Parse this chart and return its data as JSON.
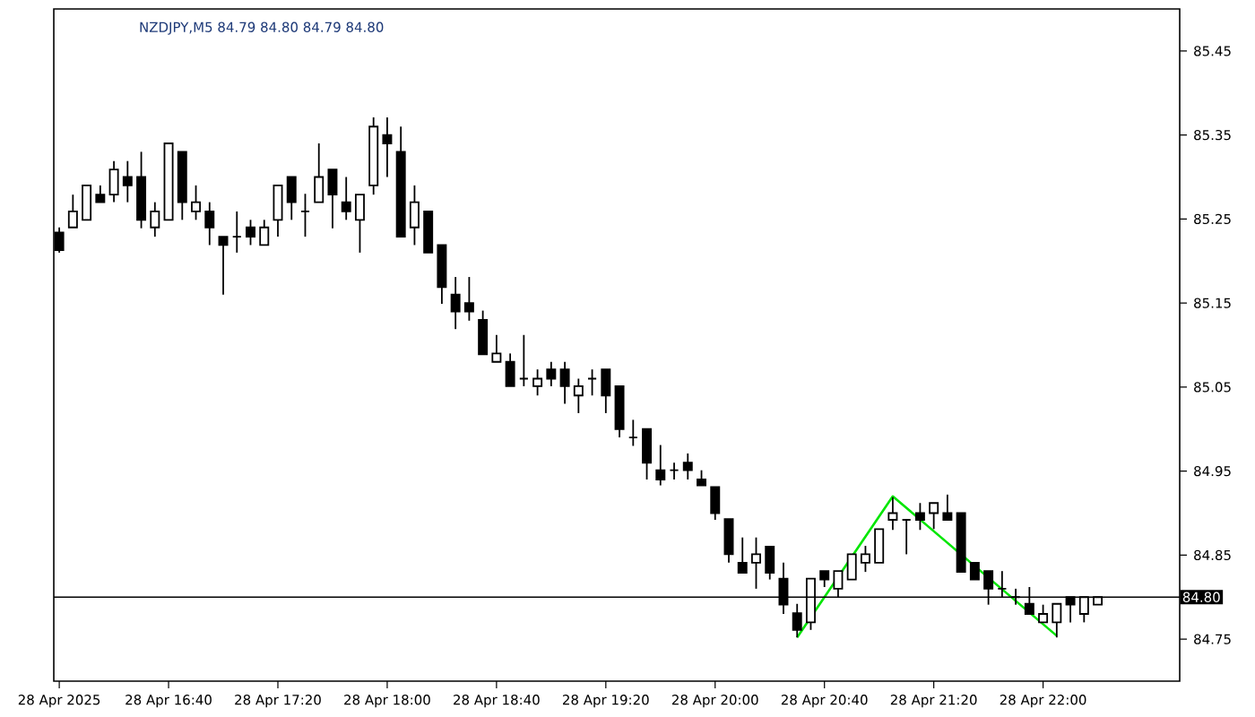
{
  "chart_data": {
    "type": "candlestick",
    "title": "NZDJPY,M5  84.79 84.80 84.79 84.80",
    "xlim": [
      "2025-04-28T15:58",
      "2025-04-28T22:50"
    ],
    "ylim": [
      84.7,
      85.5
    ],
    "xticks": [
      {
        "value": "2025-04-28T16:00",
        "label": "28 Apr 2025"
      },
      {
        "value": "2025-04-28T16:40",
        "label": "28 Apr 16:40"
      },
      {
        "value": "2025-04-28T17:20",
        "label": "28 Apr 17:20"
      },
      {
        "value": "2025-04-28T18:00",
        "label": "28 Apr 18:00"
      },
      {
        "value": "2025-04-28T18:40",
        "label": "28 Apr 18:40"
      },
      {
        "value": "2025-04-28T19:20",
        "label": "28 Apr 19:20"
      },
      {
        "value": "2025-04-28T20:00",
        "label": "28 Apr 20:00"
      },
      {
        "value": "2025-04-28T20:40",
        "label": "28 Apr 20:40"
      },
      {
        "value": "2025-04-28T21:20",
        "label": "28 Apr 21:20"
      },
      {
        "value": "2025-04-28T22:00",
        "label": "28 Apr 22:00"
      }
    ],
    "yticks": [
      84.75,
      84.85,
      84.95,
      85.05,
      85.15,
      85.25,
      85.35,
      85.45
    ],
    "ref_lines": [
      {
        "axis": "y",
        "value": 84.8,
        "label": "84.80",
        "color": "#000000"
      }
    ],
    "series": [
      {
        "color": "#000000",
        "x": [
          "2025-04-28T16:00",
          "2025-04-28T16:05",
          "2025-04-28T16:10",
          "2025-04-28T16:15",
          "2025-04-28T16:20",
          "2025-04-28T16:25",
          "2025-04-28T16:30",
          "2025-04-28T16:35",
          "2025-04-28T16:40",
          "2025-04-28T16:45",
          "2025-04-28T16:50",
          "2025-04-28T16:55",
          "2025-04-28T17:00",
          "2025-04-28T17:05",
          "2025-04-28T17:10",
          "2025-04-28T17:15",
          "2025-04-28T17:20",
          "2025-04-28T17:25",
          "2025-04-28T17:30",
          "2025-04-28T17:35",
          "2025-04-28T17:40",
          "2025-04-28T17:45",
          "2025-04-28T17:50",
          "2025-04-28T17:55",
          "2025-04-28T18:00",
          "2025-04-28T18:05",
          "2025-04-28T18:10",
          "2025-04-28T18:15",
          "2025-04-28T18:20",
          "2025-04-28T18:25",
          "2025-04-28T18:30",
          "2025-04-28T18:35",
          "2025-04-28T18:40",
          "2025-04-28T18:45",
          "2025-04-28T18:50",
          "2025-04-28T18:55",
          "2025-04-28T19:00",
          "2025-04-28T19:05",
          "2025-04-28T19:10",
          "2025-04-28T19:15",
          "2025-04-28T19:20",
          "2025-04-28T19:25",
          "2025-04-28T19:30",
          "2025-04-28T19:35",
          "2025-04-28T19:40",
          "2025-04-28T19:45",
          "2025-04-28T19:50",
          "2025-04-28T19:55",
          "2025-04-28T20:00",
          "2025-04-28T20:05",
          "2025-04-28T20:10",
          "2025-04-28T20:15",
          "2025-04-28T20:20",
          "2025-04-28T20:25",
          "2025-04-28T20:30",
          "2025-04-28T20:35",
          "2025-04-28T20:40",
          "2025-04-28T20:45",
          "2025-04-28T20:50",
          "2025-04-28T20:55",
          "2025-04-28T21:00",
          "2025-04-28T21:05",
          "2025-04-28T21:10",
          "2025-04-28T21:15",
          "2025-04-28T21:20",
          "2025-04-28T21:25",
          "2025-04-28T21:30",
          "2025-04-28T21:35",
          "2025-04-28T21:40",
          "2025-04-28T21:45",
          "2025-04-28T21:50",
          "2025-04-28T21:55",
          "2025-04-28T22:00",
          "2025-04-28T22:05",
          "2025-04-28T22:10",
          "2025-04-28T22:15",
          "2025-04-28T22:20"
        ],
        "ohlc": [
          [
            85.234,
            85.24,
            85.21,
            85.213
          ],
          [
            85.24,
            85.279,
            85.24,
            85.259
          ],
          [
            85.249,
            85.29,
            85.249,
            85.29
          ],
          [
            85.279,
            85.29,
            85.27,
            85.27
          ],
          [
            85.279,
            85.319,
            85.27,
            85.309
          ],
          [
            85.3,
            85.319,
            85.27,
            85.29
          ],
          [
            85.3,
            85.33,
            85.239,
            85.249
          ],
          [
            85.24,
            85.27,
            85.229,
            85.259
          ],
          [
            85.249,
            85.34,
            85.249,
            85.34
          ],
          [
            85.33,
            85.33,
            85.249,
            85.27
          ],
          [
            85.259,
            85.29,
            85.249,
            85.27
          ],
          [
            85.259,
            85.27,
            85.219,
            85.24
          ],
          [
            85.229,
            85.229,
            85.16,
            85.219
          ],
          [
            85.229,
            85.259,
            85.21,
            85.229
          ],
          [
            85.24,
            85.249,
            85.219,
            85.229
          ],
          [
            85.219,
            85.249,
            85.219,
            85.24
          ],
          [
            85.249,
            85.29,
            85.229,
            85.29
          ],
          [
            85.3,
            85.3,
            85.249,
            85.27
          ],
          [
            85.259,
            85.28,
            85.229,
            85.259
          ],
          [
            85.27,
            85.34,
            85.27,
            85.3
          ],
          [
            85.309,
            85.309,
            85.239,
            85.279
          ],
          [
            85.27,
            85.3,
            85.249,
            85.259
          ],
          [
            85.249,
            85.279,
            85.21,
            85.279
          ],
          [
            85.29,
            85.371,
            85.279,
            85.36
          ],
          [
            85.35,
            85.371,
            85.3,
            85.34
          ],
          [
            85.33,
            85.36,
            85.229,
            85.229
          ],
          [
            85.24,
            85.29,
            85.219,
            85.27
          ],
          [
            85.259,
            85.259,
            85.21,
            85.21
          ],
          [
            85.219,
            85.219,
            85.149,
            85.169
          ],
          [
            85.16,
            85.181,
            85.119,
            85.14
          ],
          [
            85.15,
            85.181,
            85.129,
            85.14
          ],
          [
            85.13,
            85.141,
            85.089,
            85.089
          ],
          [
            85.08,
            85.112,
            85.08,
            85.09
          ],
          [
            85.08,
            85.09,
            85.051,
            85.051
          ],
          [
            85.06,
            85.112,
            85.051,
            85.06
          ],
          [
            85.051,
            85.071,
            85.04,
            85.06
          ],
          [
            85.071,
            85.08,
            85.051,
            85.06
          ],
          [
            85.071,
            85.08,
            85.03,
            85.051
          ],
          [
            85.04,
            85.06,
            85.019,
            85.051
          ],
          [
            85.06,
            85.071,
            85.04,
            85.06
          ],
          [
            85.071,
            85.071,
            85.019,
            85.04
          ],
          [
            85.051,
            85.051,
            84.99,
            85.0
          ],
          [
            84.99,
            85.011,
            84.98,
            84.99
          ],
          [
            85.0,
            85.0,
            84.94,
            84.96
          ],
          [
            84.951,
            84.981,
            84.933,
            84.94
          ],
          [
            84.951,
            84.96,
            84.94,
            84.951
          ],
          [
            84.96,
            84.971,
            84.94,
            84.951
          ],
          [
            84.94,
            84.951,
            84.933,
            84.933
          ],
          [
            84.931,
            84.931,
            84.892,
            84.9
          ],
          [
            84.893,
            84.893,
            84.841,
            84.851
          ],
          [
            84.841,
            84.871,
            84.829,
            84.829
          ],
          [
            84.841,
            84.871,
            84.81,
            84.851
          ],
          [
            84.86,
            84.86,
            84.821,
            84.829
          ],
          [
            84.822,
            84.841,
            84.78,
            84.791
          ],
          [
            84.781,
            84.792,
            84.752,
            84.761
          ],
          [
            84.77,
            84.822,
            84.761,
            84.822
          ],
          [
            84.831,
            84.831,
            84.812,
            84.821
          ],
          [
            84.81,
            84.831,
            84.8,
            84.831
          ],
          [
            84.821,
            84.851,
            84.821,
            84.851
          ],
          [
            84.841,
            84.861,
            84.83,
            84.851
          ],
          [
            84.841,
            84.881,
            84.841,
            84.881
          ],
          [
            84.892,
            84.919,
            84.88,
            84.9
          ],
          [
            84.892,
            84.892,
            84.851,
            84.892
          ],
          [
            84.9,
            84.912,
            84.88,
            84.892
          ],
          [
            84.9,
            84.912,
            84.881,
            84.912
          ],
          [
            84.9,
            84.922,
            84.892,
            84.892
          ],
          [
            84.9,
            84.9,
            84.83,
            84.83
          ],
          [
            84.841,
            84.841,
            84.821,
            84.821
          ],
          [
            84.831,
            84.831,
            84.791,
            84.81
          ],
          [
            84.81,
            84.831,
            84.8,
            84.81
          ],
          [
            84.8,
            84.81,
            84.791,
            84.8
          ],
          [
            84.792,
            84.812,
            84.78,
            84.78
          ],
          [
            84.77,
            84.791,
            84.77,
            84.78
          ],
          [
            84.77,
            84.792,
            84.752,
            84.792
          ],
          [
            84.8,
            84.8,
            84.77,
            84.791
          ],
          [
            84.78,
            84.8,
            84.77,
            84.8
          ],
          [
            84.791,
            84.8,
            84.791,
            84.8
          ]
        ]
      },
      {
        "type": "line",
        "color": "#00e600",
        "x": [
          "2025-04-28T20:30",
          "2025-04-28T21:05",
          "2025-04-28T22:05"
        ],
        "values": [
          84.752,
          84.92,
          84.754
        ]
      }
    ]
  }
}
